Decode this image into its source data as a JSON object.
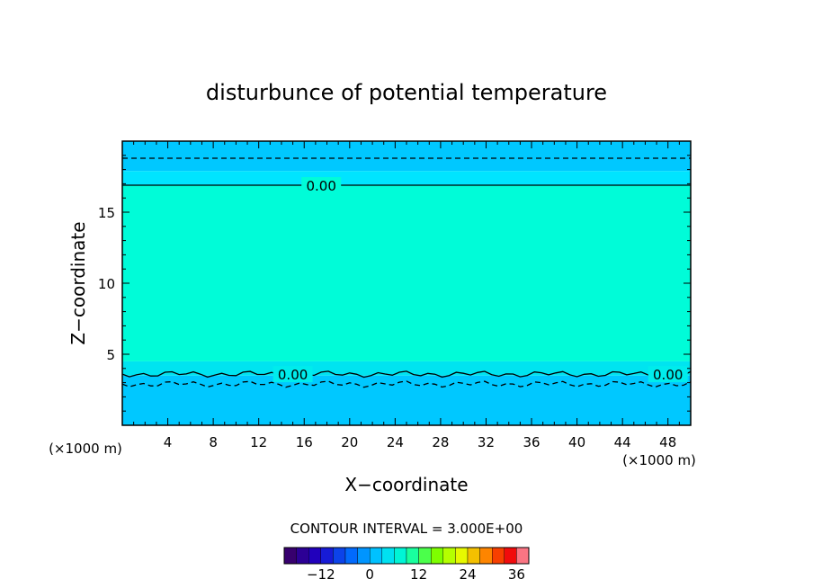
{
  "chart_data": {
    "type": "heatmap",
    "title": "disturbunce of potential temperature",
    "xlabel": "X−coordinate",
    "ylabel": "Z−coordinate",
    "x_unit": "(×1000 m)",
    "z_unit": "(×1000 m)",
    "xlim": [
      0,
      50
    ],
    "ylim": [
      0,
      20
    ],
    "x_ticks": [
      4,
      8,
      12,
      16,
      20,
      24,
      28,
      32,
      36,
      40,
      44,
      48
    ],
    "y_ticks": [
      5,
      10,
      15
    ],
    "layers": [
      {
        "z_from": 0,
        "z_to": 3.5,
        "value": -3,
        "color": "#00c8ff"
      },
      {
        "z_from": 3.5,
        "z_to": 4.5,
        "value": -1,
        "color": "#00e4f0"
      },
      {
        "z_from": 4.5,
        "z_to": 16.9,
        "value": 1,
        "color": "#00fcd8"
      },
      {
        "z_from": 16.9,
        "z_to": 17.9,
        "value": -1,
        "color": "#00e4ff"
      },
      {
        "z_from": 17.9,
        "z_to": 20,
        "value": -3,
        "color": "#00c8ff"
      }
    ],
    "contours": [
      {
        "level": 0.0,
        "label": "0.00",
        "z": 16.9,
        "style": "solid"
      },
      {
        "level": -3.0,
        "z": 18.8,
        "style": "dashed"
      },
      {
        "level": 0.0,
        "label": "0.00",
        "z": 3.6,
        "style": "solid"
      },
      {
        "level": -3.0,
        "z": 2.9,
        "style": "dashed"
      }
    ],
    "contour_interval_text": "CONTOUR INTERVAL = 3.000E+00",
    "colorbar": {
      "min": -21,
      "max": 39,
      "step": 3,
      "tick_values": [
        -12,
        0,
        12,
        24,
        36
      ],
      "tick_labels": [
        "−12",
        "0",
        "12",
        "24",
        "36"
      ]
    }
  }
}
